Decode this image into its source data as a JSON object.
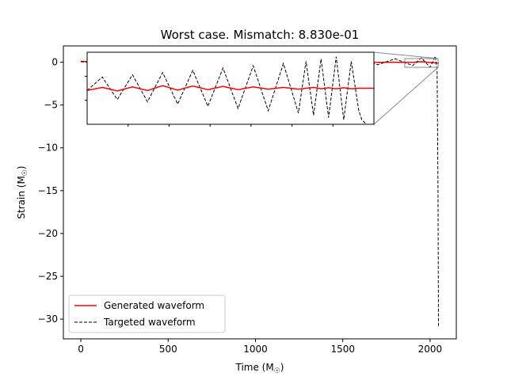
{
  "chart_data": {
    "type": "line",
    "title": "Worst case. Mismatch: 8.830e-01",
    "xlabel": "Time (M$_\\odot$)",
    "ylabel": "Strain (M$_\\odot$)",
    "xlabel_text": "Time (M",
    "ylabel_text": "Strain (M",
    "unit_symbol": "☉",
    "xlim": [
      -100,
      2150
    ],
    "ylim": [
      -32.3,
      1.9
    ],
    "x_ticks": [
      0,
      500,
      1000,
      1500,
      2000
    ],
    "y_ticks": [
      0,
      -5,
      -10,
      -15,
      -20,
      -25,
      -30
    ],
    "x_tick_labels": [
      "0",
      "500",
      "1000",
      "1500",
      "2000"
    ],
    "y_tick_labels": [
      "0",
      "−5",
      "−10",
      "−15",
      "−20",
      "−25",
      "−30"
    ],
    "legend": {
      "placement": "lower-left",
      "entries": [
        {
          "label": "Generated waveform",
          "color": "#ff0000",
          "style": "solid"
        },
        {
          "label": "Targeted waveform",
          "color": "#000000",
          "style": "dashed"
        }
      ]
    },
    "series": [
      {
        "name": "Generated waveform",
        "color": "#ff0000",
        "style": "solid",
        "x": [
          0,
          100,
          200,
          300,
          400,
          500,
          600,
          700,
          800,
          900,
          1000,
          1100,
          1200,
          1300,
          1400,
          1500,
          1600,
          1700,
          1800,
          1900,
          1950,
          2000,
          2040,
          2050
        ],
        "y": [
          0.1,
          0.02,
          -0.05,
          0.03,
          0.0,
          -0.06,
          0.04,
          -0.03,
          0.05,
          -0.02,
          0.03,
          -0.04,
          0.02,
          -0.03,
          0.01,
          -0.02,
          0.02,
          -0.01,
          0.0,
          -0.02,
          0.05,
          -0.03,
          -0.1,
          -0.1
        ]
      },
      {
        "name": "Targeted waveform",
        "color": "#000000",
        "style": "dashed",
        "x": [
          0,
          100,
          200,
          300,
          400,
          500,
          600,
          700,
          800,
          900,
          1000,
          1100,
          1200,
          1300,
          1400,
          1500,
          1600,
          1700,
          1800,
          1900,
          1950,
          2000,
          2030,
          2040,
          2045,
          2048
        ],
        "y": [
          0.05,
          -0.1,
          0.12,
          -0.1,
          0.15,
          -0.12,
          0.1,
          -0.15,
          0.12,
          -0.1,
          0.14,
          -0.12,
          0.15,
          -0.2,
          0.2,
          -0.25,
          0.3,
          -0.3,
          0.4,
          -0.4,
          0.5,
          -0.6,
          0.7,
          -1.0,
          -15.0,
          -30.8
        ]
      }
    ],
    "inset": {
      "xlim": [
        1860,
        2050
      ],
      "ylim": [
        -0.8,
        0.8
      ],
      "generated": {
        "x": [
          1860,
          1870,
          1880,
          1890,
          1900,
          1910,
          1920,
          1930,
          1940,
          1950,
          1960,
          1970,
          1980,
          1990,
          2000,
          2010,
          2015,
          2020,
          2025,
          2030,
          2035,
          2040,
          2045,
          2050
        ],
        "y": [
          -0.05,
          0.02,
          -0.06,
          0.03,
          -0.05,
          0.06,
          -0.04,
          0.05,
          -0.03,
          0.04,
          -0.03,
          0.03,
          -0.02,
          0.02,
          -0.02,
          0.02,
          -0.01,
          0.01,
          -0.01,
          0.01,
          -0.01,
          0.0,
          0.0,
          0.0
        ]
      },
      "targeted": {
        "x": [
          1860,
          1870,
          1880,
          1890,
          1900,
          1910,
          1920,
          1930,
          1940,
          1950,
          1960,
          1970,
          1980,
          1990,
          2000,
          2005,
          2010,
          2015,
          2020,
          2025,
          2030,
          2035,
          2040,
          2042,
          2045
        ],
        "y": [
          -0.05,
          0.25,
          -0.25,
          0.3,
          -0.3,
          0.35,
          -0.35,
          0.4,
          -0.4,
          0.45,
          -0.45,
          0.5,
          -0.5,
          0.55,
          -0.55,
          0.6,
          -0.6,
          0.65,
          -0.65,
          0.7,
          -0.7,
          0.6,
          -0.5,
          -0.7,
          -0.8
        ]
      }
    },
    "grid": false
  }
}
